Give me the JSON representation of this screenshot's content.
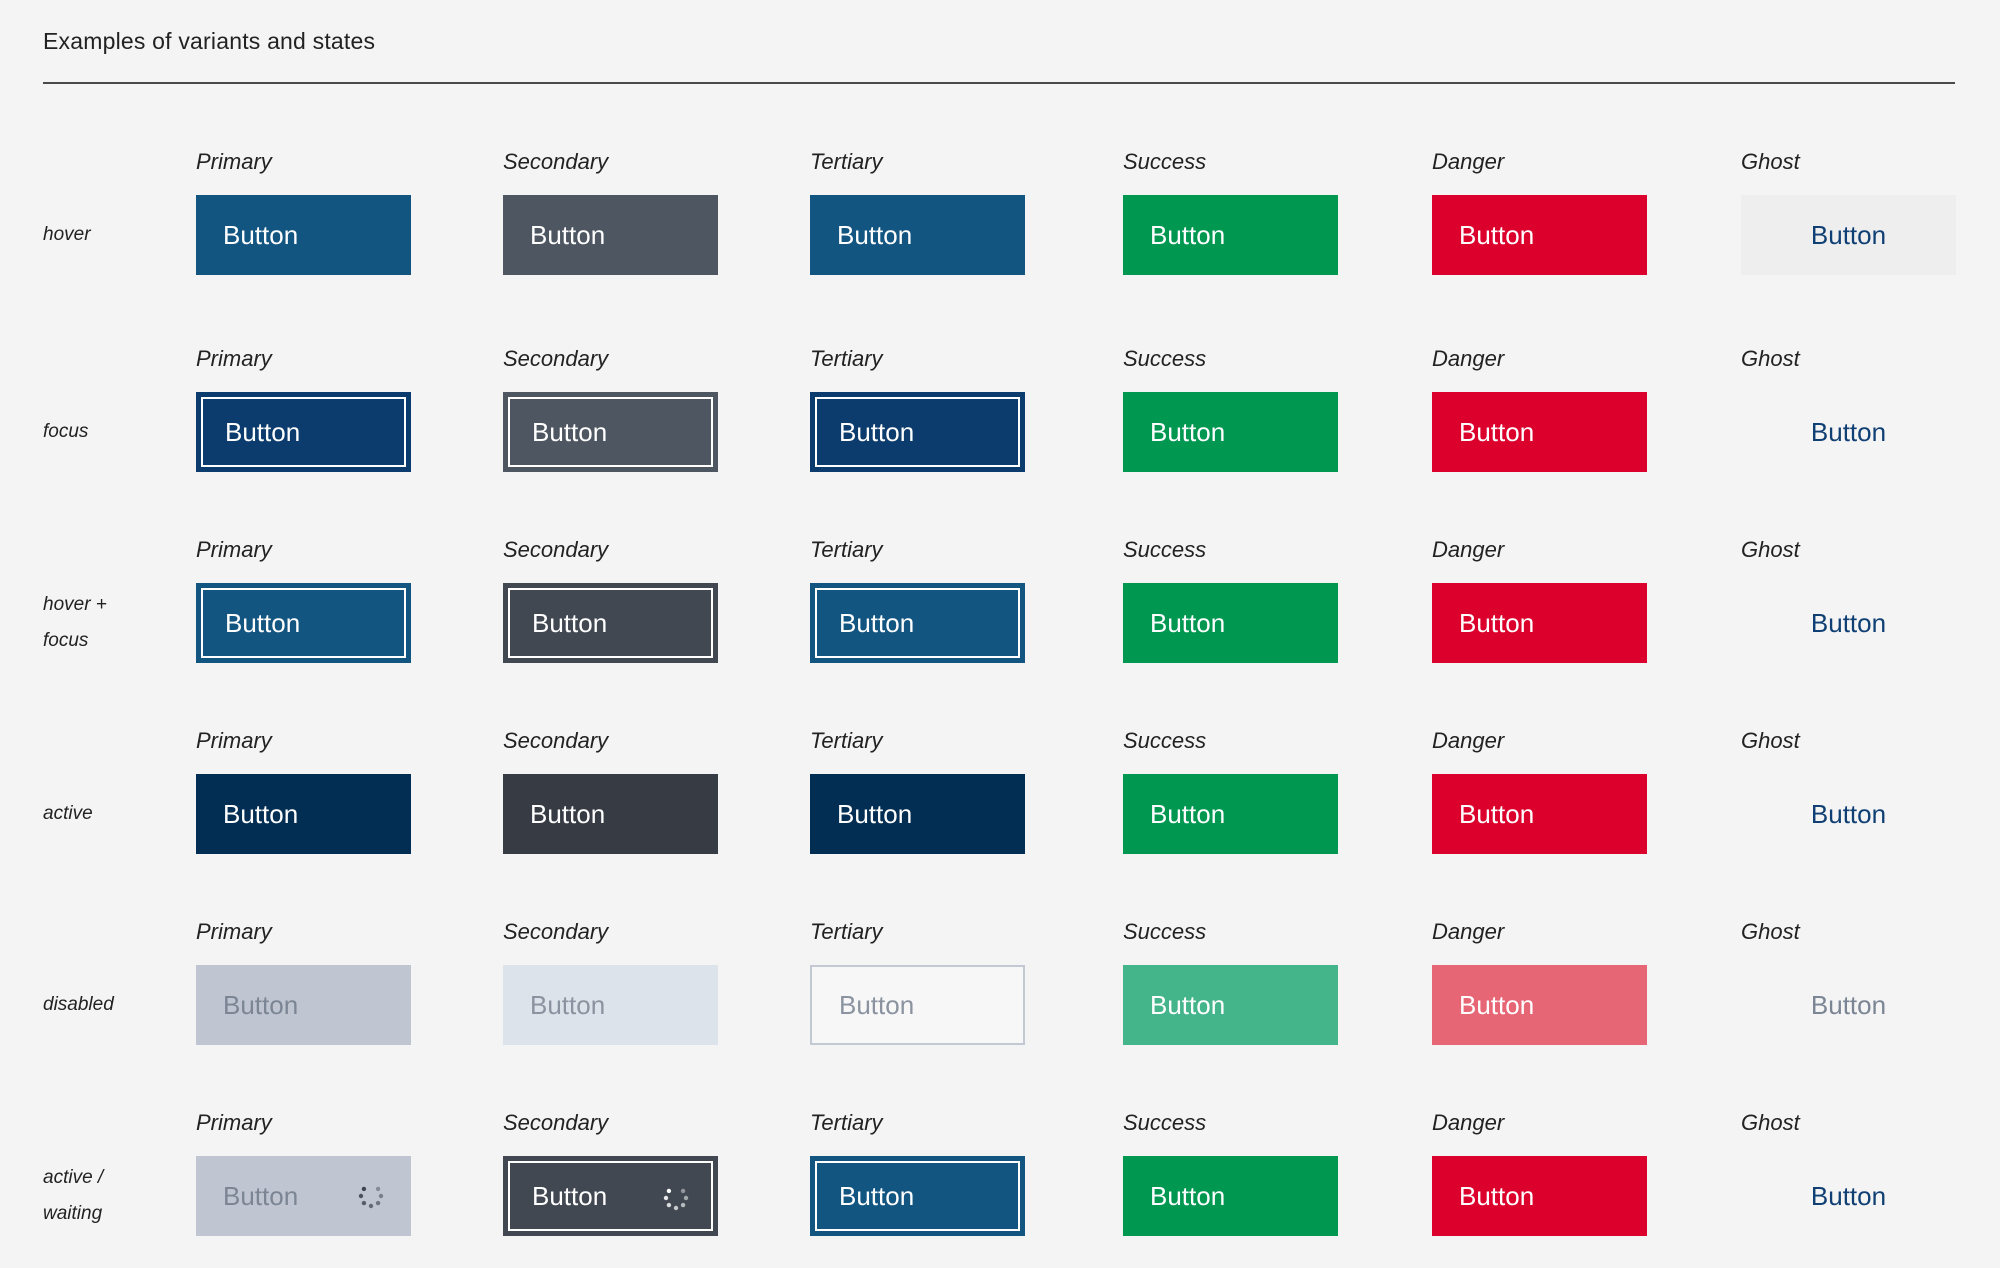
{
  "page": {
    "title": "Examples of variants and states"
  },
  "variants": [
    "Primary",
    "Secondary",
    "Tertiary",
    "Success",
    "Danger",
    "Ghost"
  ],
  "rows": [
    {
      "state": "hover",
      "state_lines": [
        "hover"
      ],
      "buttons": [
        {
          "variant": "primary",
          "label": "Button",
          "bg": "#135581",
          "fg": "#ffffff",
          "border": "none",
          "ring": false
        },
        {
          "variant": "secondary",
          "label": "Button",
          "bg": "#4e5661",
          "fg": "#ffffff",
          "border": "none",
          "ring": false
        },
        {
          "variant": "tertiary",
          "label": "Button",
          "bg": "#135581",
          "fg": "#ffffff",
          "border": "none",
          "ring": false
        },
        {
          "variant": "success",
          "label": "Button",
          "bg": "#009851",
          "fg": "#ffffff",
          "border": "none",
          "ring": false
        },
        {
          "variant": "danger",
          "label": "Button",
          "bg": "#dc002d",
          "fg": "#ffffff",
          "border": "none",
          "ring": false
        },
        {
          "variant": "ghost",
          "label": "Button",
          "bg": "#eeeeef",
          "fg": "#0f3f73",
          "border": "none",
          "ring": false
        }
      ]
    },
    {
      "state": "focus",
      "state_lines": [
        "focus"
      ],
      "buttons": [
        {
          "variant": "primary",
          "label": "Button",
          "bg": "#0b3c6d",
          "fg": "#ffffff",
          "border": "#0b3c6d",
          "ring": true
        },
        {
          "variant": "secondary",
          "label": "Button",
          "bg": "#4e5661",
          "fg": "#ffffff",
          "border": "#4e5661",
          "ring": true
        },
        {
          "variant": "tertiary",
          "label": "Button",
          "bg": "#0b3c6d",
          "fg": "#ffffff",
          "border": "#0b3c6d",
          "ring": true
        },
        {
          "variant": "success",
          "label": "Button",
          "bg": "#009851",
          "fg": "#ffffff",
          "border": "none",
          "ring": false
        },
        {
          "variant": "danger",
          "label": "Button",
          "bg": "#dc002d",
          "fg": "#ffffff",
          "border": "none",
          "ring": false
        },
        {
          "variant": "ghost",
          "label": "Button",
          "bg": "transparent",
          "fg": "#0f3f73",
          "border": "none",
          "ring": false
        }
      ]
    },
    {
      "state": "hover + focus",
      "state_lines": [
        "hover +",
        "focus"
      ],
      "buttons": [
        {
          "variant": "primary",
          "label": "Button",
          "bg": "#135581",
          "fg": "#ffffff",
          "border": "#135581",
          "ring": true
        },
        {
          "variant": "secondary",
          "label": "Button",
          "bg": "#414852",
          "fg": "#ffffff",
          "border": "#414852",
          "ring": true
        },
        {
          "variant": "tertiary",
          "label": "Button",
          "bg": "#135581",
          "fg": "#ffffff",
          "border": "#135581",
          "ring": true
        },
        {
          "variant": "success",
          "label": "Button",
          "bg": "#009851",
          "fg": "#ffffff",
          "border": "none",
          "ring": false
        },
        {
          "variant": "danger",
          "label": "Button",
          "bg": "#dc002d",
          "fg": "#ffffff",
          "border": "none",
          "ring": false
        },
        {
          "variant": "ghost",
          "label": "Button",
          "bg": "transparent",
          "fg": "#0f3f73",
          "border": "none",
          "ring": false
        }
      ]
    },
    {
      "state": "active",
      "state_lines": [
        "active"
      ],
      "buttons": [
        {
          "variant": "primary",
          "label": "Button",
          "bg": "#032e53",
          "fg": "#ffffff",
          "border": "none",
          "ring": false
        },
        {
          "variant": "secondary",
          "label": "Button",
          "bg": "#373c44",
          "fg": "#ffffff",
          "border": "none",
          "ring": false
        },
        {
          "variant": "tertiary",
          "label": "Button",
          "bg": "#032e53",
          "fg": "#ffffff",
          "border": "none",
          "ring": false
        },
        {
          "variant": "success",
          "label": "Button",
          "bg": "#009851",
          "fg": "#ffffff",
          "border": "none",
          "ring": false
        },
        {
          "variant": "danger",
          "label": "Button",
          "bg": "#dc002d",
          "fg": "#ffffff",
          "border": "none",
          "ring": false
        },
        {
          "variant": "ghost",
          "label": "Button",
          "bg": "transparent",
          "fg": "#0f3f73",
          "border": "none",
          "ring": false
        }
      ]
    },
    {
      "state": "disabled",
      "state_lines": [
        "disabled"
      ],
      "buttons": [
        {
          "variant": "primary",
          "label": "Button",
          "bg": "#c0c6d1",
          "fg": "#7b8594",
          "border": "none",
          "ring": false
        },
        {
          "variant": "secondary",
          "label": "Button",
          "bg": "#dce3ea",
          "fg": "#8a939f",
          "border": "none",
          "ring": false
        },
        {
          "variant": "tertiary",
          "label": "Button",
          "bg": "#f7f7f8",
          "fg": "#8a939f",
          "border": "#c3c9d2",
          "ring": false
        },
        {
          "variant": "success",
          "label": "Button",
          "bg": "#44b58a",
          "fg": "#ffffff",
          "border": "none",
          "ring": false
        },
        {
          "variant": "danger",
          "label": "Button",
          "bg": "#e66675",
          "fg": "#ffffff",
          "border": "none",
          "ring": false
        },
        {
          "variant": "ghost",
          "label": "Button",
          "bg": "transparent",
          "fg": "#7b8594",
          "border": "none",
          "ring": false
        }
      ]
    },
    {
      "state": "active / waiting",
      "state_lines": [
        "active /",
        "waiting"
      ],
      "buttons": [
        {
          "variant": "primary",
          "label": "Button",
          "bg": "#c0c6d1",
          "fg": "#7b8594",
          "border": "none",
          "ring": false,
          "spinner": "#3c434c"
        },
        {
          "variant": "secondary",
          "label": "Button",
          "bg": "#414852",
          "fg": "#ffffff",
          "border": "#414852",
          "ring": true,
          "spinner": "#ffffff"
        },
        {
          "variant": "tertiary",
          "label": "Button",
          "bg": "#135581",
          "fg": "#ffffff",
          "border": "#135581",
          "ring": true
        },
        {
          "variant": "success",
          "label": "Button",
          "bg": "#009851",
          "fg": "#ffffff",
          "border": "none",
          "ring": false
        },
        {
          "variant": "danger",
          "label": "Button",
          "bg": "#dc002d",
          "fg": "#ffffff",
          "border": "none",
          "ring": false
        },
        {
          "variant": "ghost",
          "label": "Button",
          "bg": "transparent",
          "fg": "#0f3f73",
          "border": "none",
          "ring": false
        }
      ]
    }
  ]
}
